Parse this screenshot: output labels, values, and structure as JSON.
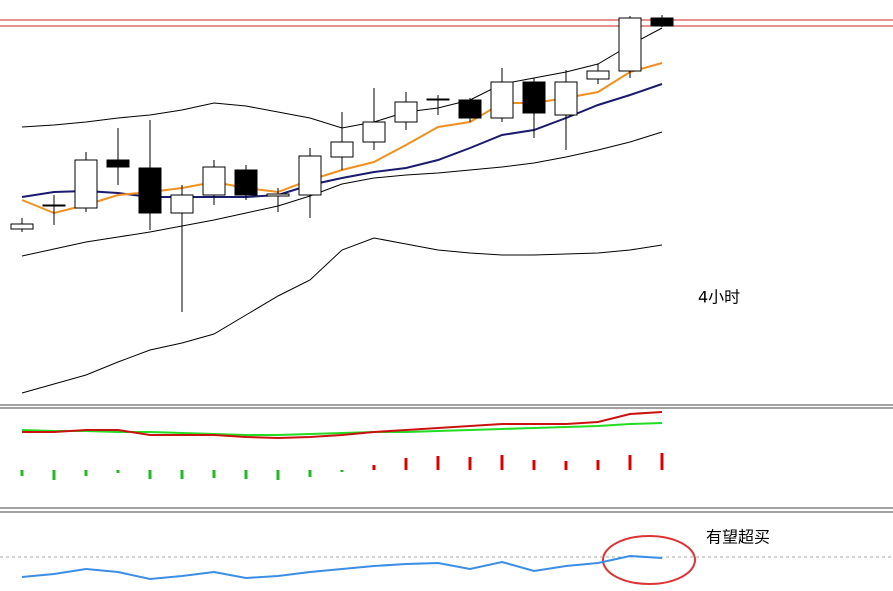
{
  "chart_data": [
    {
      "type": "candlestick",
      "annotation": "4小时",
      "ylim": [
        0,
        405
      ],
      "categories": [
        null,
        null,
        null,
        null,
        null,
        null,
        null,
        null,
        null,
        null,
        null,
        null,
        null,
        null,
        null,
        null,
        null,
        null,
        null,
        null,
        null
      ],
      "candles": {
        "up_color": "#ffffff",
        "down_color": "#000000",
        "open": [
          176,
          199,
          197,
          245,
          237,
          192,
          210,
          235,
          209,
          210,
          248,
          263,
          283,
          305,
          305,
          287,
          323,
          290,
          326,
          334,
          387
        ],
        "high": [
          187,
          210,
          253,
          277,
          285,
          220,
          245,
          240,
          217,
          257,
          293,
          317,
          313,
          310,
          307,
          337,
          327,
          335,
          341,
          389,
          390
        ],
        "low": [
          173,
          180,
          193,
          220,
          175,
          93,
          200,
          205,
          193,
          187,
          235,
          255,
          275,
          290,
          283,
          283,
          267,
          255,
          321,
          327,
          378
        ],
        "close": [
          181,
          200,
          245,
          238,
          192,
          210,
          238,
          210,
          211,
          249,
          263,
          283,
          303,
          306,
          287,
          323,
          292,
          323,
          334,
          387,
          379
        ]
      },
      "series": [
        {
          "color": "#000000",
          "values": [
            278,
            280,
            283,
            287,
            290,
            295,
            302,
            299,
            293,
            287,
            277,
            283,
            293,
            297,
            305,
            321,
            327,
            333,
            341,
            360,
            377
          ]
        },
        {
          "color": "#000000",
          "values": [
            12,
            21,
            30,
            43,
            55,
            62,
            71,
            90,
            109,
            125,
            155,
            167,
            161,
            155,
            152,
            150,
            150,
            151,
            152,
            155,
            160
          ]
        },
        {
          "color": "#000000",
          "values": [
            149,
            156,
            163,
            168,
            173,
            179,
            185,
            192,
            199,
            209,
            221,
            227,
            230,
            232,
            235,
            238,
            242,
            248,
            255,
            263,
            273
          ]
        },
        {
          "color": "#1a1a6e",
          "values": [
            208,
            213,
            214,
            212,
            208,
            208,
            208,
            208,
            210,
            220,
            227,
            233,
            237,
            245,
            257,
            270,
            275,
            287,
            300,
            310,
            321
          ]
        },
        {
          "color": "#f0901e",
          "values": [
            205,
            192,
            200,
            210,
            213,
            217,
            223,
            217,
            213,
            225,
            235,
            243,
            260,
            278,
            283,
            302,
            302,
            307,
            313,
            333,
            342
          ]
        }
      ]
    },
    {
      "type": "macd",
      "ylim": [
        -38,
        62
      ],
      "histogram": {
        "up_color": "#dd0000",
        "down_color": "#22bb22",
        "values": [
          -6,
          -10,
          -6,
          -3,
          -9,
          -9,
          -8,
          -9,
          -10,
          -7,
          -2,
          5,
          12,
          14,
          13,
          15,
          10,
          9,
          10,
          15,
          17
        ]
      },
      "series": [
        {
          "color": "#22dd22",
          "values": [
            40,
            39,
            39,
            38,
            38,
            37,
            36,
            35,
            35,
            36,
            37,
            38,
            38,
            39,
            40,
            41,
            42,
            43,
            44,
            46,
            47
          ]
        },
        {
          "color": "#cc1111",
          "values": [
            38,
            38,
            40,
            40,
            35,
            35,
            35,
            33,
            32,
            33,
            35,
            38,
            40,
            42,
            44,
            46,
            46,
            46,
            48,
            56,
            58
          ]
        }
      ]
    },
    {
      "type": "line",
      "annotation": "有望超买",
      "ylim": [
        -34,
        45
      ],
      "yticks": [
        0
      ],
      "grid": true,
      "series": [
        {
          "color": "#3a8ee6",
          "values": [
            -20,
            -17,
            -12,
            -15,
            -22,
            -19,
            -15,
            -21,
            -19,
            -15,
            -12,
            -9,
            -7,
            -6,
            -12,
            -5,
            -14,
            -9,
            -6,
            1,
            -1
          ]
        }
      ]
    }
  ]
}
